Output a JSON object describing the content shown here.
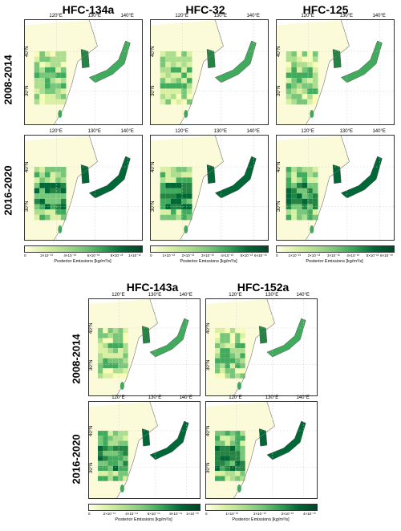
{
  "titles": [
    "HFC-134a",
    "HFC-32",
    "HFC-125",
    "HFC-143a",
    "HFC-152a"
  ],
  "row_labels": [
    "2008-2014",
    "2016-2020"
  ],
  "lon_labels": [
    "120°E",
    "130°E",
    "140°E"
  ],
  "lat_labels": [
    "40°N",
    "30°N"
  ],
  "colorbar_label": "Posterior Emissions [kg/m²/s]",
  "colorbars": [
    {
      "ticks": [
        "0",
        "2×10⁻¹³",
        "4×10⁻¹³",
        "6×10⁻¹³",
        "8×10⁻¹³",
        "1×10⁻¹²"
      ]
    },
    {
      "ticks": [
        "0",
        "1×10⁻¹³",
        "2×10⁻¹³",
        "3×10⁻¹³",
        "4×10⁻¹³",
        "5×10⁻¹³",
        "6×10⁻¹³"
      ]
    },
    {
      "ticks": [
        "0",
        "1×10⁻¹³",
        "2×10⁻¹³",
        "3×10⁻¹³",
        "4×10⁻¹³",
        "5×10⁻¹³",
        "6×10⁻¹³"
      ]
    },
    {
      "ticks": [
        "0",
        "2×10⁻¹⁴",
        "4×10⁻¹⁴",
        "6×10⁻¹⁴",
        "8×10⁻¹⁴",
        "1×10⁻¹³"
      ]
    },
    {
      "ticks": [
        "0",
        "1×10⁻¹³",
        "2×10⁻¹³",
        "3×10⁻¹³",
        "4×10⁻¹³"
      ]
    }
  ],
  "colors": {
    "low": "#ffffe5",
    "mid": "#78c679",
    "high": "#004529",
    "land_outline": "#555555"
  }
}
